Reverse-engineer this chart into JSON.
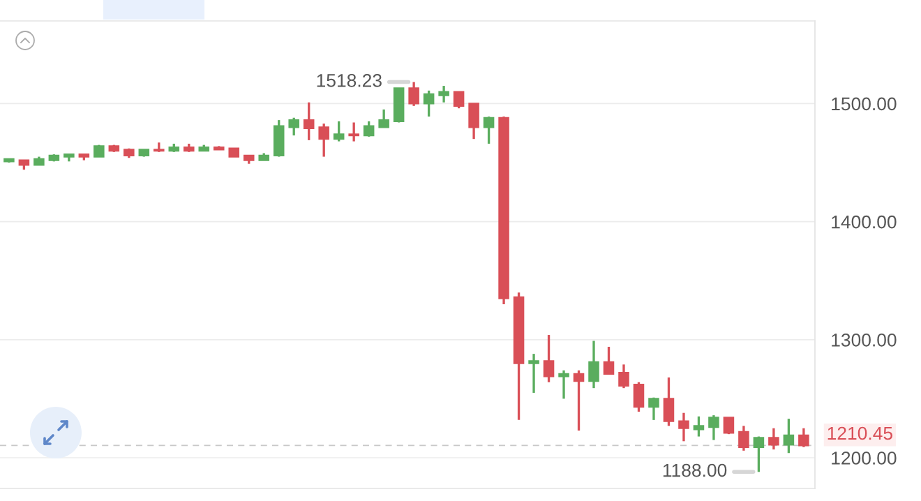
{
  "chart_data": {
    "type": "candlestick",
    "categories": [
      null,
      null,
      null,
      null,
      null,
      null,
      null,
      null,
      null,
      null,
      null,
      null,
      null,
      null,
      null,
      null,
      null,
      null,
      null,
      null,
      null,
      null,
      null,
      null,
      null,
      null,
      null,
      null,
      null,
      null,
      null,
      null,
      null,
      null,
      null,
      null,
      null,
      null,
      null,
      null,
      null,
      null,
      null,
      null,
      null,
      null,
      null,
      null,
      null,
      null,
      null,
      null,
      null,
      null
    ],
    "ohlc": [
      [
        1451,
        1453,
        1450,
        1453
      ],
      [
        1452,
        1452,
        1444,
        1448
      ],
      [
        1448,
        1455,
        1448,
        1453
      ],
      [
        1452,
        1457,
        1451,
        1456
      ],
      [
        1455,
        1457,
        1451,
        1457
      ],
      [
        1457,
        1457,
        1452,
        1455
      ],
      [
        1455,
        1465,
        1455,
        1464
      ],
      [
        1464,
        1465,
        1459,
        1460
      ],
      [
        1461,
        1462,
        1454,
        1456
      ],
      [
        1456,
        1461,
        1455,
        1461
      ],
      [
        1461,
        1467,
        1459,
        1460
      ],
      [
        1460,
        1466,
        1459,
        1463
      ],
      [
        1463,
        1466,
        1459,
        1460
      ],
      [
        1460,
        1465,
        1460,
        1463
      ],
      [
        1463,
        1464,
        1461,
        1461
      ],
      [
        1462,
        1462,
        1455,
        1455
      ],
      [
        1456,
        1456,
        1449,
        1452
      ],
      [
        1452,
        1458,
        1452,
        1456
      ],
      [
        1456,
        1486,
        1455,
        1481
      ],
      [
        1480,
        1488,
        1473,
        1486
      ],
      [
        1486,
        1501,
        1469,
        1479
      ],
      [
        1480,
        1483,
        1455,
        1470
      ],
      [
        1470,
        1485,
        1468,
        1474
      ],
      [
        1474,
        1484,
        1468,
        1473
      ],
      [
        1473,
        1485,
        1472,
        1481
      ],
      [
        1480,
        1495,
        1480,
        1486
      ],
      [
        1485,
        1513,
        1484,
        1513
      ],
      [
        1513,
        1518.23,
        1498,
        1500
      ],
      [
        1500,
        1511,
        1489,
        1508
      ],
      [
        1507,
        1515,
        1501,
        1510
      ],
      [
        1510,
        1510,
        1496,
        1498
      ],
      [
        1500,
        1500,
        1470,
        1480
      ],
      [
        1480,
        1489,
        1466,
        1488
      ],
      [
        1488,
        1489,
        1330,
        1335
      ],
      [
        1336,
        1340,
        1232,
        1280
      ],
      [
        1280,
        1288,
        1255,
        1282
      ],
      [
        1282,
        1304,
        1264,
        1269
      ],
      [
        1269,
        1274,
        1250,
        1271
      ],
      [
        1271,
        1274,
        1223,
        1265
      ],
      [
        1265,
        1299,
        1259,
        1281
      ],
      [
        1281,
        1294,
        1271,
        1271
      ],
      [
        1272,
        1279,
        1259,
        1261
      ],
      [
        1262,
        1264,
        1239,
        1243
      ],
      [
        1243,
        1251,
        1232,
        1250
      ],
      [
        1250,
        1268,
        1227,
        1231
      ],
      [
        1231,
        1238,
        1214,
        1225
      ],
      [
        1224,
        1235,
        1218,
        1227
      ],
      [
        1226,
        1236,
        1215,
        1234
      ],
      [
        1234,
        1234,
        1220,
        1221
      ],
      [
        1222,
        1227,
        1206,
        1209
      ],
      [
        1209,
        1218,
        1188.0,
        1217
      ],
      [
        1217,
        1225,
        1207,
        1211
      ],
      [
        1211,
        1233,
        1204,
        1219
      ],
      [
        1219,
        1225,
        1209,
        1210.45
      ]
    ],
    "colors": [
      "#5aad5e",
      "#d94f57",
      "#5aad5e",
      "#5aad5e",
      "#5aad5e",
      "#d94f57",
      "#5aad5e",
      "#d94f57",
      "#d94f57",
      "#5aad5e",
      "#d94f57",
      "#5aad5e",
      "#d94f57",
      "#5aad5e",
      "#d94f57",
      "#d94f57",
      "#d94f57",
      "#5aad5e",
      "#5aad5e",
      "#5aad5e",
      "#d94f57",
      "#d94f57",
      "#5aad5e",
      "#d94f57",
      "#5aad5e",
      "#5aad5e",
      "#5aad5e",
      "#d94f57",
      "#5aad5e",
      "#5aad5e",
      "#d94f57",
      "#d94f57",
      "#5aad5e",
      "#d94f57",
      "#d94f57",
      "#5aad5e",
      "#d94f57",
      "#5aad5e",
      "#d94f57",
      "#5aad5e",
      "#d94f57",
      "#d94f57",
      "#d94f57",
      "#5aad5e",
      "#d94f57",
      "#d94f57",
      "#5aad5e",
      "#5aad5e",
      "#d94f57",
      "#d94f57",
      "#5aad5e",
      "#d94f57",
      "#5aad5e",
      "#d94f57"
    ],
    "ylim": [
      1174,
      1570
    ],
    "yticks": [
      {
        "value": 1200,
        "label": "1200.00"
      },
      {
        "value": 1300,
        "label": "1300.00"
      },
      {
        "value": 1400,
        "label": "1400.00"
      },
      {
        "value": 1500,
        "label": "1500.00"
      }
    ],
    "grid": "y",
    "tick_labels": "y",
    "ref_lines": [
      {
        "axis": "y",
        "value": 1210.45,
        "label": "1210.45",
        "color": "#c8c8c8",
        "line_style": "dashed"
      }
    ],
    "annotations": [
      "1518.23",
      "1188.00"
    ]
  }
}
